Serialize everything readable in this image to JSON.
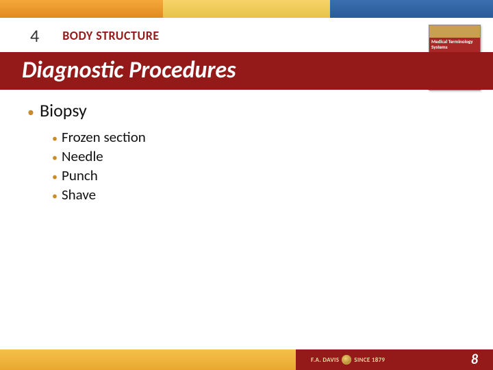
{
  "header": {
    "band_colors": {
      "left": "#f6a83a",
      "mid": "#f8d368",
      "right": "#3a6fb0"
    }
  },
  "chapter": {
    "number": "4",
    "title": "BODY STRUCTURE"
  },
  "slide_title": "Diagnostic Procedures",
  "title_bar_color": "#941a1a",
  "book": {
    "top_label": "",
    "title_line1": "Medical Terminology",
    "title_line2": "Systems"
  },
  "content": {
    "main_bullet": "Biopsy",
    "sub_bullets": [
      "Frozen section",
      "Needle",
      "Punch",
      "Shave"
    ],
    "bullet_color": "#c98a2a"
  },
  "footer": {
    "publisher_left": "F.A. DAVIS",
    "publisher_right": "SINCE 1879",
    "page_number": "8",
    "left_color": "#f5c04a",
    "right_color": "#941a1a"
  }
}
